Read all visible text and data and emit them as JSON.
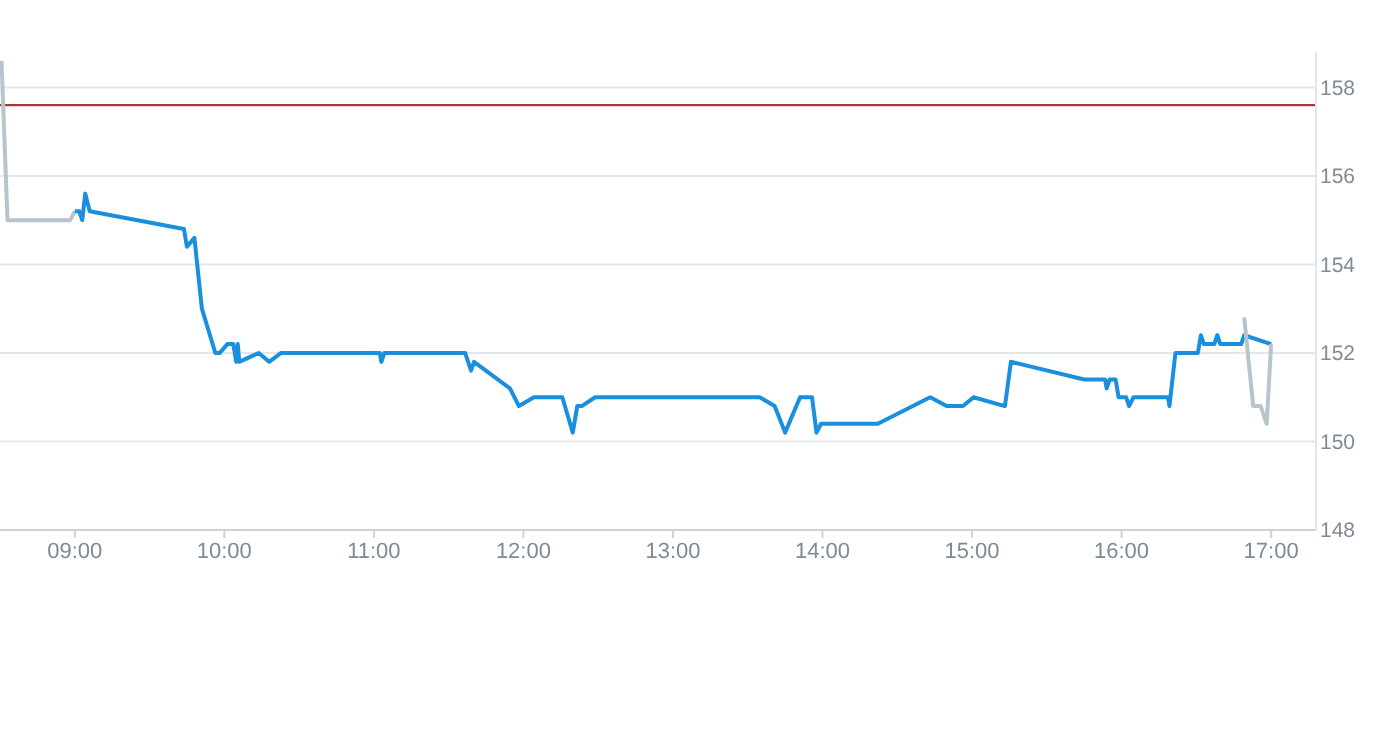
{
  "chart_data": {
    "type": "line",
    "xlim": [
      8.5,
      17.3
    ],
    "xticks": [
      {
        "value": 9,
        "label": "09:00"
      },
      {
        "value": 10,
        "label": "10:00"
      },
      {
        "value": 11,
        "label": "11:00"
      },
      {
        "value": 12,
        "label": "12:00"
      },
      {
        "value": 13,
        "label": "13:00"
      },
      {
        "value": 14,
        "label": "14:00"
      },
      {
        "value": 15,
        "label": "15:00"
      },
      {
        "value": 16,
        "label": "16:00"
      },
      {
        "value": 17,
        "label": "17:00"
      }
    ],
    "ylim": [
      148,
      158.8
    ],
    "yticks": [
      148,
      150,
      152,
      154,
      156,
      158
    ],
    "grid": "y",
    "marker": "none",
    "line_style": "solid",
    "ref_lines": [
      {
        "axis": "y",
        "value": 157.6,
        "color": "#b0353a"
      }
    ],
    "series": [
      {
        "color": "#b8c4cc",
        "x": [
          8.51,
          8.55,
          8.97,
          9.0
        ],
        "values": [
          158.6,
          155.0,
          155.0,
          155.2
        ]
      },
      {
        "color": "#1a8fdd",
        "x": [
          9.0,
          9.03,
          9.05,
          9.07,
          9.1,
          9.73,
          9.75,
          9.8,
          9.85,
          9.94,
          9.97,
          10.02,
          10.06,
          10.08,
          10.09,
          10.1,
          10.23,
          10.3,
          10.38,
          11.04,
          11.05,
          11.07,
          11.61,
          11.65,
          11.67,
          11.91,
          11.97,
          12.07,
          12.26,
          12.33,
          12.36,
          12.39,
          12.48,
          13.58,
          13.68,
          13.75,
          13.85,
          13.93,
          13.96,
          13.99,
          14.37,
          14.72,
          14.83,
          14.94,
          15.01,
          15.22,
          15.26,
          15.75,
          15.89,
          15.9,
          15.92,
          15.96,
          15.98,
          16.03,
          16.05,
          16.08,
          16.31,
          16.32,
          16.36,
          16.51,
          16.53,
          16.55,
          16.62,
          16.64,
          16.66,
          16.8,
          16.82,
          17.0
        ],
        "values": [
          155.2,
          155.2,
          155.0,
          155.6,
          155.2,
          154.8,
          154.4,
          154.6,
          153.0,
          152.0,
          152.0,
          152.2,
          152.2,
          151.8,
          152.2,
          151.8,
          152.0,
          151.8,
          152.0,
          152.0,
          151.8,
          152.0,
          152.0,
          151.6,
          151.8,
          151.2,
          150.8,
          151.0,
          151.0,
          150.2,
          150.8,
          150.8,
          151.0,
          151.0,
          150.8,
          150.2,
          151.0,
          151.0,
          150.2,
          150.4,
          150.4,
          151.0,
          150.8,
          150.8,
          151.0,
          150.8,
          151.8,
          151.4,
          151.4,
          151.2,
          151.4,
          151.4,
          151.0,
          151.0,
          150.8,
          151.0,
          151.0,
          150.8,
          152.0,
          152.0,
          152.4,
          152.2,
          152.2,
          152.4,
          152.2,
          152.2,
          152.4,
          152.2
        ]
      },
      {
        "color": "#b8c4cc",
        "x": [
          16.82,
          16.88,
          16.93,
          16.97,
          17.0
        ],
        "values": [
          152.8,
          150.8,
          150.8,
          150.4,
          152.2
        ]
      }
    ]
  }
}
